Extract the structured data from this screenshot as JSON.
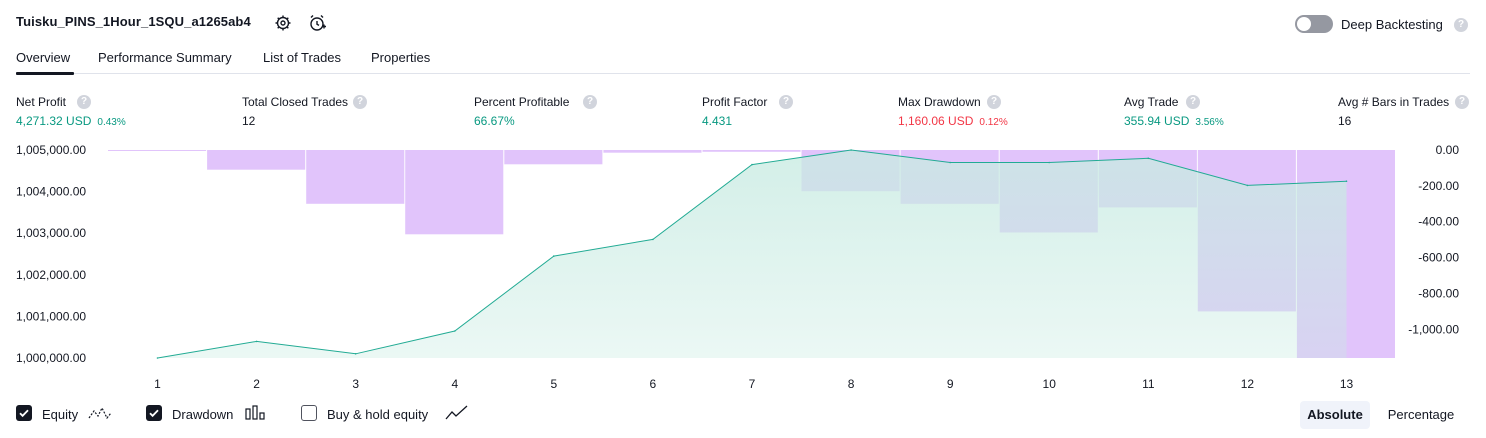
{
  "header": {
    "title": "Tuisku_PINS_1Hour_1SQU_a1265ab4",
    "deep_backtesting_label": "Deep Backtesting",
    "deep_backtesting_enabled": false
  },
  "tabs": [
    {
      "label": "Overview",
      "active": true
    },
    {
      "label": "Performance Summary",
      "active": false
    },
    {
      "label": "List of Trades",
      "active": false
    },
    {
      "label": "Properties",
      "active": false
    }
  ],
  "metrics": [
    {
      "label": "Net Profit",
      "value": "4,271.32 USD",
      "pct": "0.43%",
      "color": "green"
    },
    {
      "label": "Total Closed Trades",
      "value": "12",
      "pct": "",
      "color": "dark"
    },
    {
      "label": "Percent Profitable",
      "value": "66.67%",
      "pct": "",
      "color": "green"
    },
    {
      "label": "Profit Factor",
      "value": "4.431",
      "pct": "",
      "color": "green"
    },
    {
      "label": "Max Drawdown",
      "value": "1,160.06 USD",
      "pct": "0.12%",
      "color": "red"
    },
    {
      "label": "Avg Trade",
      "value": "355.94 USD",
      "pct": "3.56%",
      "color": "green"
    },
    {
      "label": "Avg # Bars in Trades",
      "value": "16",
      "pct": "",
      "color": "dark"
    }
  ],
  "chart_data": {
    "type": "area",
    "x": [
      "1",
      "2",
      "3",
      "4",
      "5",
      "6",
      "7",
      "8",
      "9",
      "10",
      "11",
      "12",
      "13"
    ],
    "left_axis_ticks": [
      "1,005,000.00",
      "1,004,000.00",
      "1,003,000.00",
      "1,002,000.00",
      "1,001,000.00",
      "1,000,000.00"
    ],
    "right_axis_ticks": [
      "0.00",
      "-200.00",
      "-400.00",
      "-600.00",
      "-800.00",
      "-1,000.00"
    ],
    "left_ylim": [
      1000000,
      1005000
    ],
    "right_ylim": [
      -1160,
      0
    ],
    "series": [
      {
        "name": "Equity",
        "type": "area",
        "values": [
          1000000,
          1000400,
          1000100,
          1000650,
          1002450,
          1002850,
          1004650,
          1005000,
          1004700,
          1004700,
          1004800,
          1004150,
          1004250
        ]
      },
      {
        "name": "Drawdown",
        "type": "bar",
        "values": [
          -5,
          -110,
          -300,
          -470,
          -80,
          -15,
          -10,
          -230,
          -300,
          -460,
          -320,
          -900,
          -1160
        ]
      }
    ],
    "colors": {
      "equity_line": "#22ab94",
      "equity_fill": "#c8ebe2",
      "drawdown": "#e1c4fb"
    }
  },
  "legend": {
    "equity": {
      "label": "Equity",
      "checked": true
    },
    "drawdown": {
      "label": "Drawdown",
      "checked": true
    },
    "buy_hold": {
      "label": "Buy & hold equity",
      "checked": false
    }
  },
  "mode": {
    "absolute_label": "Absolute",
    "percentage_label": "Percentage",
    "selected": "absolute"
  },
  "icons": {
    "settings": "settings-icon",
    "alert": "add-alert-icon",
    "help": "help-icon"
  }
}
